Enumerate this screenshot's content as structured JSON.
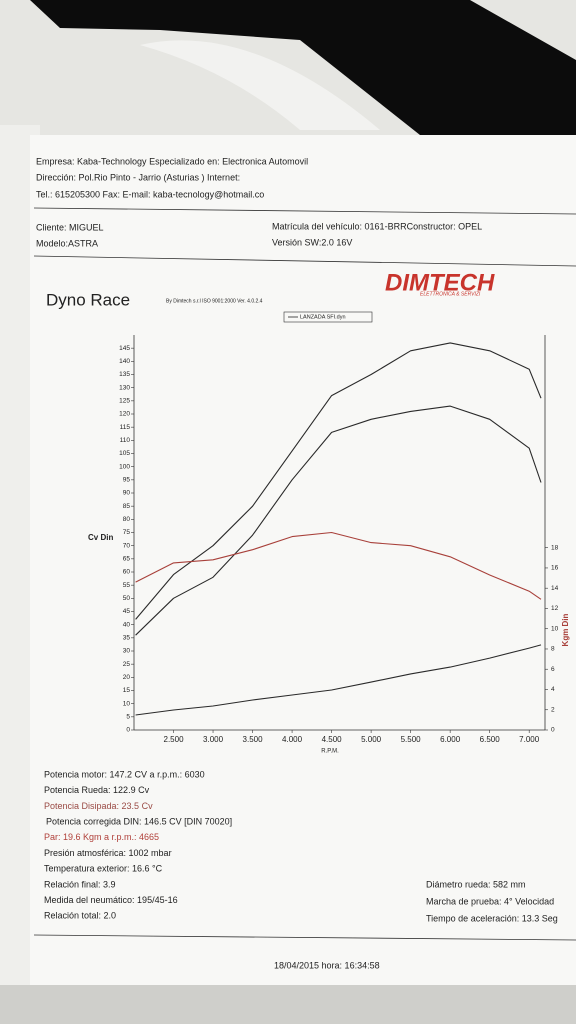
{
  "header": {
    "lines": [
      "Empresa: Kaba-Technology  Especializado en: Electronica Automovil",
      "Dirección: Pol.Rio Pinto - Jarrio (Asturias ) Internet:",
      "Tel.: 615205300 Fax:  E-mail: kaba-tecnology@hotmail.co"
    ],
    "client": "Cliente:   MIGUEL",
    "model": "Modelo:ASTRA",
    "plate": "Matrícula del vehículo: 0161-BRRConstructor: OPEL",
    "version": "Versión SW:2.0 16V",
    "logo": "DIMTECH",
    "logo_sub": "ELETTRONICA & SERVIZI"
  },
  "chart_data": {
    "type": "line",
    "title": "Dyno Race",
    "subtitle": "By Dimtech s.r.l  ISO 9001:2000  Ver. 4.0.2.4",
    "legend": "LANZADA SFI.dyn",
    "y_label": "Cv Din",
    "x_label": "R.P.M.",
    "y2_label": "Kgm Din",
    "x": [
      2020,
      2500,
      3000,
      3500,
      4000,
      4500,
      5000,
      5500,
      6000,
      6500,
      7000,
      7150
    ],
    "series": [
      {
        "color": "#2a2a2a",
        "values": [
          42,
          59,
          70,
          85,
          106,
          127,
          135,
          144,
          147,
          144,
          137,
          126
        ]
      },
      {
        "color": "#2a2a2a",
        "values": [
          36,
          50,
          58,
          74,
          95,
          113,
          118,
          121,
          123,
          118,
          107,
          94
        ]
      },
      {
        "color": "#a8403a",
        "axis": "y2",
        "values": [
          14.6,
          16.5,
          16.8,
          17.8,
          19.1,
          19.5,
          18.5,
          18.2,
          17.1,
          15.3,
          13.7,
          12.9
        ]
      },
      {
        "color": "#2a2a2a",
        "values": [
          5.7,
          7.6,
          9.1,
          11.4,
          13.3,
          15.2,
          18.2,
          21.3,
          23.9,
          27.3,
          31.1,
          32.3
        ]
      }
    ],
    "xlim": [
      2000,
      7200
    ],
    "ylim": [
      0,
      150
    ],
    "y2lim": [
      0,
      39
    ],
    "xticks": [
      {
        "value": 2500,
        "label": "2.500"
      },
      {
        "value": 3000,
        "label": "3.000"
      },
      {
        "value": 3500,
        "label": "3.500"
      },
      {
        "value": 4000,
        "label": "4.000"
      },
      {
        "value": 4500,
        "label": "4.500"
      },
      {
        "value": 5000,
        "label": "5.000"
      },
      {
        "value": 5500,
        "label": "5.500"
      },
      {
        "value": 6000,
        "label": "6.000"
      },
      {
        "value": 6500,
        "label": "6.500"
      },
      {
        "value": 7000,
        "label": "7.000"
      }
    ],
    "yticks": [
      0,
      5,
      10,
      15,
      20,
      25,
      30,
      35,
      40,
      45,
      50,
      55,
      60,
      65,
      70,
      75,
      80,
      85,
      90,
      95,
      100,
      105,
      110,
      115,
      120,
      125,
      130,
      135,
      140,
      145
    ],
    "y2ticks": [
      0,
      2,
      4,
      6,
      8,
      10,
      12,
      14,
      16,
      18
    ]
  },
  "results": {
    "left": [
      "Potencia motor:  147.2 CV a r.p.m.: 6030",
      "Potencia Rueda:  122.9 Cv",
      "Potencia Disipada:  23.5 Cv",
      "Potencia corregida DIN:  146.5 CV  [DIN 70020]",
      "Par:  19.6  Kgm a r.p.m.: 4665",
      "Presión atmosférica:  1002 mbar",
      "Temperatura exterior:   16.6 °C",
      "Relación final:  3.9",
      "Medida del neumático:   195/45-16",
      "Relación total:  2.0"
    ],
    "right": [
      "Diámetro rueda:  582 mm",
      "Marcha de prueba:  4° Velocidad",
      "Tiempo de aceleración:  13.3 Seg"
    ],
    "date": "18/04/2015  hora:   16:34:58"
  }
}
